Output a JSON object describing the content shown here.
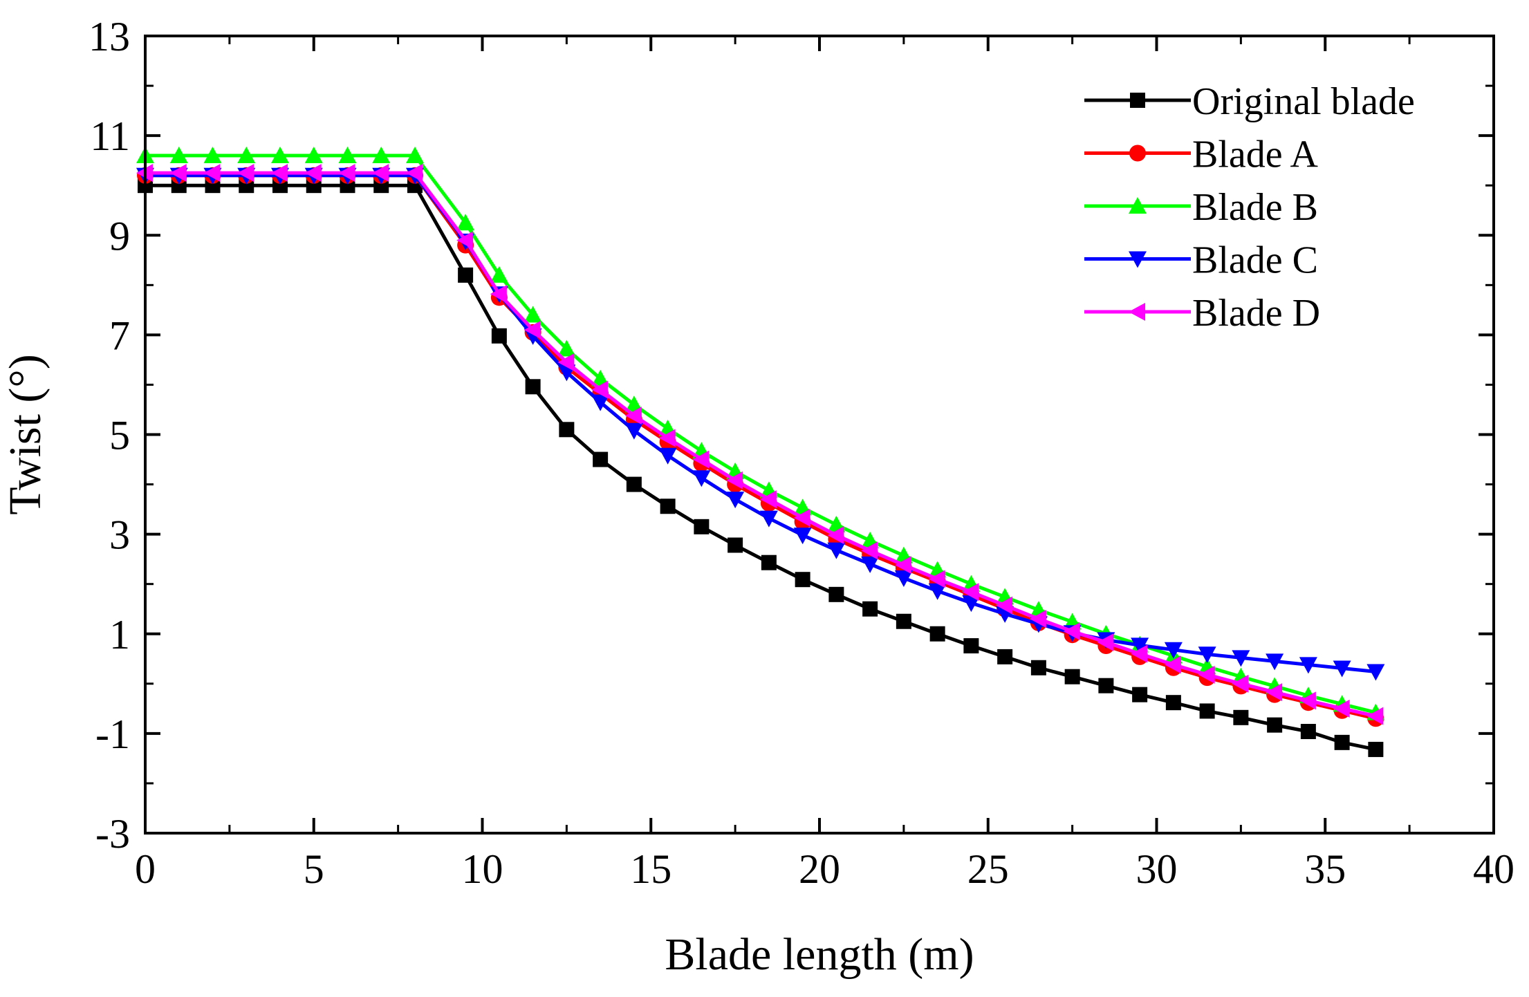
{
  "chart_data": {
    "type": "line",
    "title": "",
    "xlabel": "Blade length (m)",
    "ylabel": "Twist (°)",
    "xlim": [
      0,
      40
    ],
    "ylim": [
      -3,
      13
    ],
    "xticks": [
      0,
      5,
      10,
      15,
      20,
      25,
      30,
      35,
      40
    ],
    "yticks": [
      -3,
      -1,
      1,
      3,
      5,
      7,
      9,
      11,
      13
    ],
    "xtick_labels": [
      "0",
      "5",
      "10",
      "15",
      "20",
      "25",
      "30",
      "35",
      "40"
    ],
    "ytick_labels": [
      "-3",
      "-1",
      "1",
      "3",
      "5",
      "7",
      "9",
      "11",
      "13"
    ],
    "grid": false,
    "legend_position": "top-right",
    "x": [
      0,
      1,
      2,
      3,
      4,
      5,
      6,
      7,
      8,
      9.5,
      10.5,
      11.5,
      12.5,
      13.5,
      14.5,
      15.5,
      16.5,
      17.5,
      18.5,
      19.5,
      20.5,
      21.5,
      22.5,
      23.5,
      24.5,
      25.5,
      26.5,
      27.5,
      28.5,
      29.5,
      30.5,
      31.5,
      32.5,
      33.5,
      34.5,
      35.5,
      36.5
    ],
    "series": [
      {
        "name": "Original blade",
        "color": "#000000",
        "marker": "square",
        "values": [
          10.0,
          10.0,
          10.0,
          10.0,
          10.0,
          10.0,
          10.0,
          10.0,
          10.0,
          8.2,
          6.98,
          5.96,
          5.1,
          4.5,
          4.0,
          3.56,
          3.15,
          2.78,
          2.43,
          2.09,
          1.79,
          1.5,
          1.25,
          1.0,
          0.76,
          0.54,
          0.32,
          0.14,
          -0.04,
          -0.22,
          -0.38,
          -0.55,
          -0.68,
          -0.83,
          -0.96,
          -1.18,
          -1.32
        ]
      },
      {
        "name": "Blade A",
        "color": "#ff0000",
        "marker": "circle",
        "values": [
          10.2,
          10.2,
          10.2,
          10.2,
          10.2,
          10.2,
          10.2,
          10.2,
          10.2,
          8.8,
          7.75,
          7.05,
          6.35,
          5.82,
          5.3,
          4.85,
          4.42,
          4.0,
          3.62,
          3.25,
          2.9,
          2.6,
          2.32,
          2.05,
          1.78,
          1.5,
          1.22,
          0.98,
          0.76,
          0.54,
          0.32,
          0.12,
          -0.05,
          -0.22,
          -0.38,
          -0.54,
          -0.7
        ]
      },
      {
        "name": "Blade B",
        "color": "#00ff00",
        "marker": "triangle-up",
        "values": [
          10.6,
          10.6,
          10.6,
          10.6,
          10.6,
          10.6,
          10.6,
          10.6,
          10.6,
          9.25,
          8.2,
          7.4,
          6.72,
          6.12,
          5.6,
          5.12,
          4.67,
          4.26,
          3.88,
          3.53,
          3.19,
          2.87,
          2.57,
          2.28,
          2.0,
          1.74,
          1.48,
          1.24,
          1.0,
          0.78,
          0.56,
          0.34,
          0.14,
          -0.05,
          -0.24,
          -0.41,
          -0.58
        ]
      },
      {
        "name": "Blade C",
        "color": "#0000ff",
        "marker": "triangle-down",
        "values": [
          10.2,
          10.2,
          10.2,
          10.2,
          10.2,
          10.2,
          10.2,
          10.2,
          10.2,
          8.88,
          7.82,
          6.98,
          6.25,
          5.65,
          5.08,
          4.58,
          4.13,
          3.7,
          3.32,
          2.98,
          2.68,
          2.4,
          2.12,
          1.86,
          1.62,
          1.4,
          1.2,
          1.02,
          0.88,
          0.77,
          0.68,
          0.59,
          0.52,
          0.45,
          0.38,
          0.31,
          0.24
        ]
      },
      {
        "name": "Blade D",
        "color": "#ff00ff",
        "marker": "triangle-left",
        "values": [
          10.25,
          10.25,
          10.25,
          10.25,
          10.25,
          10.25,
          10.25,
          10.25,
          10.25,
          8.9,
          7.82,
          7.1,
          6.45,
          5.9,
          5.38,
          4.93,
          4.5,
          4.08,
          3.7,
          3.33,
          2.98,
          2.67,
          2.38,
          2.1,
          1.84,
          1.57,
          1.3,
          1.05,
          0.83,
          0.6,
          0.38,
          0.18,
          0.0,
          -0.17,
          -0.34,
          -0.5,
          -0.65
        ]
      }
    ]
  }
}
